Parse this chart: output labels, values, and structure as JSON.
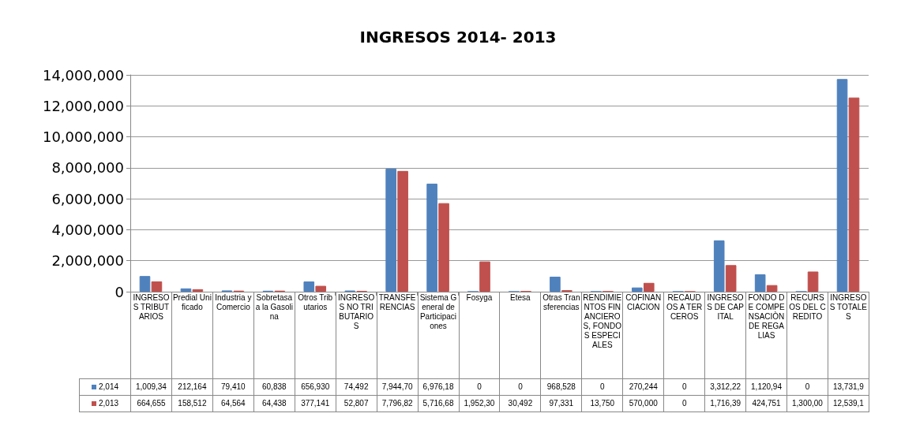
{
  "chart_data": {
    "type": "bar",
    "title": "INGRESOS 2014- 2013",
    "categories": [
      "INGRESOS TRIBUTARIOS",
      "Predial Unificado",
      "Industria y Comercio",
      "Sobretasa a la Gasolina",
      "Otros Tributarios",
      "INGRESOS NO TRIBUTARIOS",
      "TRANSFERENCIAS",
      "Sistema General de Participaciones",
      "Fosyga",
      "Etesa",
      "Otras Transferencias",
      "RENDIMIENTOS FINANCIEROS, FONDOS ESPECIALES",
      "COFINANCIACION",
      "RECAUDOS A TERCEROS",
      "INGRESOS DE CAPITAL",
      "FONDO DE COMPENSACIÒN DE REGALIAS",
      "RECURSOS DEL CREDITO",
      "INGRESOS TOTALES"
    ],
    "series": [
      {
        "name": "2,014",
        "color": "#4f81bd",
        "values": [
          1009340,
          212164,
          79410,
          60838,
          656930,
          74492,
          7944700,
          6976180,
          0,
          0,
          968528,
          0,
          270244,
          0,
          3312220,
          1120940,
          0,
          13731900
        ],
        "value_labels": [
          "1,009,34",
          "212,164",
          "79,410",
          "60,838",
          "656,930",
          "74,492",
          "7,944,70",
          "6,976,18",
          "0",
          "0",
          "968,528",
          "0",
          "270,244",
          "0",
          "3,312,22",
          "1,120,94",
          "0",
          "13,731,9"
        ]
      },
      {
        "name": "2,013",
        "color": "#c0504d",
        "values": [
          664655,
          158512,
          64564,
          64438,
          377141,
          52807,
          7796820,
          5716680,
          1952300,
          30492,
          97331,
          13750,
          570000,
          0,
          1716390,
          424751,
          1300000,
          12539100
        ],
        "value_labels": [
          "664,655",
          "158,512",
          "64,564",
          "64,438",
          "377,141",
          "52,807",
          "7,796,82",
          "5,716,68",
          "1,952,30",
          "30,492",
          "97,331",
          "13,750",
          "570,000",
          "0",
          "1,716,39",
          "424,751",
          "1,300,00",
          "12,539,1"
        ]
      }
    ],
    "ylim": [
      0,
      14000000
    ],
    "yticks": [
      {
        "value": 0,
        "label": "0"
      },
      {
        "value": 2000000,
        "label": "2,000,000"
      },
      {
        "value": 4000000,
        "label": "4,000,000"
      },
      {
        "value": 6000000,
        "label": "6,000,000"
      },
      {
        "value": 8000000,
        "label": "8,000,000"
      },
      {
        "value": 10000000,
        "label": "10,000,000"
      },
      {
        "value": 12000000,
        "label": "12,000,000"
      },
      {
        "value": 14000000,
        "label": "14,000,000"
      }
    ],
    "grid": "y",
    "legend": "bottom"
  }
}
